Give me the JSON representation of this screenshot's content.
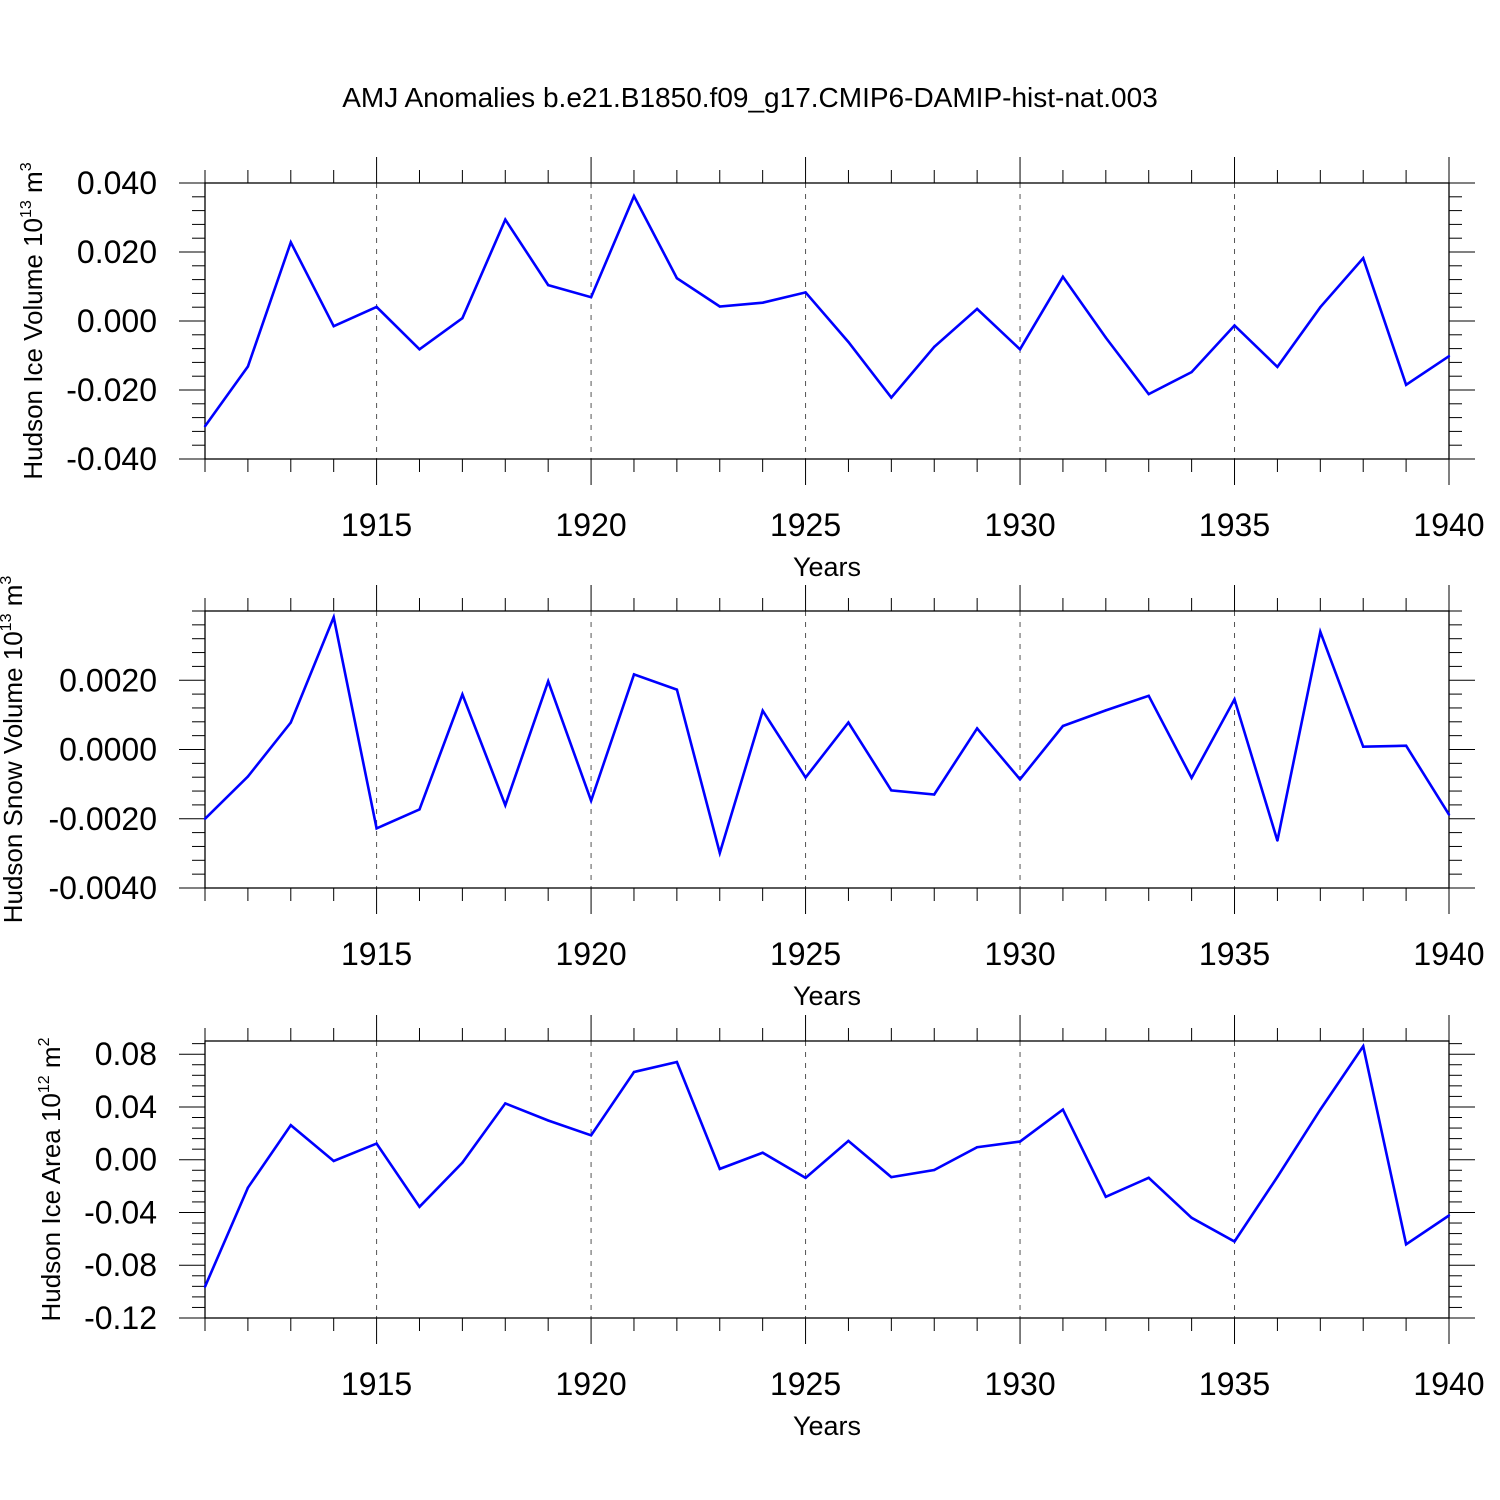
{
  "page": {
    "title": "AMJ Anomalies b.e21.B1850.f09_g17.CMIP6-DAMIP-hist-nat.003"
  },
  "colors": {
    "line": "#0000ff",
    "axis": "#000000",
    "grid": "#555555"
  },
  "chart_data": [
    {
      "type": "line",
      "title": "",
      "ylabel": "Hudson Ice Volume 10^13 m^3",
      "ylabel_base": "Hudson Ice Volume 10",
      "ylabel_exp1": "13",
      "ylabel_unit": " m",
      "ylabel_exp2": "3",
      "xlabel": "Years",
      "xlim": [
        1911,
        1940
      ],
      "ylim": [
        -0.04,
        0.04
      ],
      "xticks": [
        1915,
        1920,
        1925,
        1930,
        1935,
        1940
      ],
      "yticks": [
        -0.04,
        -0.02,
        0.0,
        0.02,
        0.04
      ],
      "ytick_labels": [
        "-0.040",
        "-0.020",
        "0.000",
        "0.020",
        "0.040"
      ],
      "x": [
        1911,
        1912,
        1913,
        1914,
        1915,
        1916,
        1917,
        1918,
        1919,
        1920,
        1921,
        1922,
        1923,
        1924,
        1925,
        1926,
        1927,
        1928,
        1929,
        1930,
        1931,
        1932,
        1933,
        1934,
        1935,
        1936,
        1937,
        1938,
        1939,
        1940
      ],
      "values": [
        -0.0305,
        -0.0132,
        0.0228,
        -0.0015,
        0.0041,
        -0.0082,
        0.0008,
        0.0294,
        0.0104,
        0.0069,
        0.0362,
        0.0124,
        0.0042,
        0.0053,
        0.0083,
        -0.0061,
        -0.0222,
        -0.0075,
        0.0035,
        -0.0082,
        0.0128,
        -0.0048,
        -0.0212,
        -0.0148,
        -0.0013,
        -0.0133,
        0.004,
        0.0182,
        -0.0185,
        -0.0102
      ]
    },
    {
      "type": "line",
      "title": "",
      "ylabel": "Hudson Snow Volume 10^13 m^3",
      "ylabel_base": "Hudson Snow Volume 10",
      "ylabel_exp1": "13",
      "ylabel_unit": " m",
      "ylabel_exp2": "3",
      "xlabel": "Years",
      "xlim": [
        1911,
        1940
      ],
      "ylim": [
        -0.004,
        0.004
      ],
      "xticks": [
        1915,
        1920,
        1925,
        1930,
        1935,
        1940
      ],
      "yticks": [
        -0.004,
        -0.002,
        0.0,
        0.002
      ],
      "ytick_labels": [
        "-0.0040",
        "-0.0020",
        "0.0000",
        "0.0020"
      ],
      "x": [
        1911,
        1912,
        1913,
        1914,
        1915,
        1916,
        1917,
        1918,
        1919,
        1920,
        1921,
        1922,
        1923,
        1924,
        1925,
        1926,
        1927,
        1928,
        1929,
        1930,
        1931,
        1932,
        1933,
        1934,
        1935,
        1936,
        1937,
        1938,
        1939,
        1940
      ],
      "values": [
        -0.002,
        -0.00078,
        0.00078,
        0.00382,
        -0.00228,
        -0.00173,
        0.00159,
        -0.00161,
        0.00197,
        -0.00148,
        0.00217,
        0.00173,
        -0.00299,
        0.00112,
        -0.00081,
        0.00078,
        -0.00118,
        -0.0013,
        0.00061,
        -0.00086,
        0.00068,
        0.00113,
        0.00155,
        -0.00082,
        0.00145,
        -0.00263,
        0.0034,
        8e-05,
        0.00011,
        -0.00188
      ]
    },
    {
      "type": "line",
      "title": "",
      "ylabel": "Hudson Ice Area 10^12 m^2",
      "ylabel_base": "Hudson Ice Area 10",
      "ylabel_exp1": "12",
      "ylabel_unit": " m",
      "ylabel_exp2": "2",
      "xlabel": "Years",
      "xlim": [
        1911,
        1940
      ],
      "ylim": [
        -0.12,
        0.09
      ],
      "xticks": [
        1915,
        1920,
        1925,
        1930,
        1935,
        1940
      ],
      "yticks": [
        -0.12,
        -0.08,
        -0.04,
        0.0,
        0.04,
        0.08
      ],
      "ytick_labels": [
        "-0.12",
        "-0.08",
        "-0.04",
        "0.00",
        "0.04",
        "0.08"
      ],
      "x": [
        1911,
        1912,
        1913,
        1914,
        1915,
        1916,
        1917,
        1918,
        1919,
        1920,
        1921,
        1922,
        1923,
        1924,
        1925,
        1926,
        1927,
        1928,
        1929,
        1930,
        1931,
        1932,
        1933,
        1934,
        1935,
        1936,
        1937,
        1938,
        1939,
        1940
      ],
      "values": [
        -0.0963,
        -0.0212,
        0.0262,
        -0.001,
        0.0122,
        -0.0357,
        -0.0022,
        0.0427,
        0.0297,
        0.0185,
        0.0665,
        0.0741,
        -0.007,
        0.0053,
        -0.0138,
        0.0143,
        -0.0132,
        -0.0078,
        0.0095,
        0.0137,
        0.038,
        -0.0281,
        -0.0137,
        -0.044,
        -0.062,
        -0.013,
        0.038,
        0.086,
        -0.0641,
        -0.0423
      ]
    }
  ]
}
